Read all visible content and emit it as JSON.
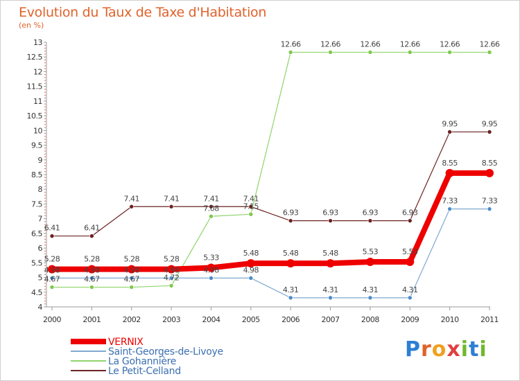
{
  "title": "Evolution du Taux de Taxe d'Habitation",
  "unit_label": "(en %)",
  "logo": {
    "letters": [
      "P",
      "r",
      "o",
      "x",
      "i",
      "t",
      "i"
    ],
    "colors": [
      "#2d7fd3",
      "#e0622a",
      "#f0a020",
      "#e04040",
      "#6fb82e",
      "#2d7fd3",
      "#6fb82e"
    ]
  },
  "chart_data": {
    "type": "line",
    "title": "Evolution du Taux de Taxe d'Habitation",
    "ylabel": "(en %)",
    "x": [
      "2000",
      "2001",
      "2002",
      "2003",
      "2004",
      "2005",
      "2006",
      "2007",
      "2008",
      "2009",
      "2010",
      "2011"
    ],
    "ylim": [
      4,
      13
    ],
    "y_ticks": [
      "4",
      "4.5",
      "5",
      "5.5",
      "6",
      "6.5",
      "7",
      "7.5",
      "8",
      "8.5",
      "9",
      "9.5",
      "10",
      "10.5",
      "11",
      "11.5",
      "12",
      "12.5",
      "13"
    ],
    "grid": false,
    "legend_position": "bottom-left",
    "series": [
      {
        "name": "Le Petit-Celland",
        "color": "#6b2222",
        "line_width": 1.2,
        "marker_radius": 3,
        "values": [
          6.41,
          6.41,
          7.41,
          7.41,
          7.41,
          7.41,
          6.93,
          6.93,
          6.93,
          6.93,
          9.95,
          9.95
        ],
        "labels": [
          "6.41",
          "6.41",
          "7.41",
          "7.41",
          "7.41",
          "7.41",
          "6.93",
          "6.93",
          "6.93",
          "6.93",
          "9.95",
          "9.95"
        ]
      },
      {
        "name": "La Gohannière",
        "color": "#8fd46a",
        "marker_fill": "#7fc84e",
        "line_width": 1.2,
        "marker_radius": 3,
        "values": [
          4.67,
          4.67,
          4.67,
          4.72,
          7.08,
          7.15,
          12.66,
          12.66,
          12.66,
          12.66,
          12.66,
          12.66
        ],
        "labels": [
          "4.67",
          "4.67",
          "4.67",
          "4.72",
          "7.08",
          "7.15",
          "12.66",
          "12.66",
          "12.66",
          "12.66",
          "12.66",
          "12.66"
        ]
      },
      {
        "name": "Saint-Georges-de-Livoye",
        "color": "#7fa9d0",
        "marker_fill": "#4d8cc8",
        "line_width": 1.2,
        "marker_radius": 3,
        "values": [
          4.98,
          4.98,
          4.98,
          4.98,
          4.98,
          4.98,
          4.31,
          4.31,
          4.31,
          4.31,
          7.33,
          7.33
        ],
        "labels": [
          "4.98",
          "4.98",
          "4.98",
          "4.98",
          "4.98",
          "4.98",
          "4.31",
          "4.31",
          "4.31",
          "4.31",
          "7.33",
          "7.33"
        ]
      },
      {
        "name": "VERNIX",
        "color": "#ee0000",
        "line_width": 8,
        "marker_radius": 6,
        "values": [
          5.28,
          5.28,
          5.28,
          5.28,
          5.33,
          5.48,
          5.48,
          5.48,
          5.53,
          5.53,
          8.55,
          8.55
        ],
        "labels": [
          "5.28",
          "5.28",
          "5.28",
          "5.28",
          "5.33",
          "5.48",
          "5.48",
          "5.48",
          "5.53",
          "5.53",
          "8.55",
          "8.55"
        ]
      }
    ],
    "legend": [
      {
        "name": "VERNIX",
        "color": "#ee0000",
        "text_color": "#ee0000",
        "swatch_width": 8
      },
      {
        "name": "Saint-Georges-de-Livoye",
        "color": "#7fa9d0",
        "text_color": "#3b6fb0",
        "swatch_width": 2
      },
      {
        "name": "La Gohannière",
        "color": "#8fd46a",
        "text_color": "#3b6fb0",
        "swatch_width": 2
      },
      {
        "name": "Le Petit-Celland",
        "color": "#6b2222",
        "text_color": "#3b6fb0",
        "swatch_width": 2
      }
    ]
  }
}
